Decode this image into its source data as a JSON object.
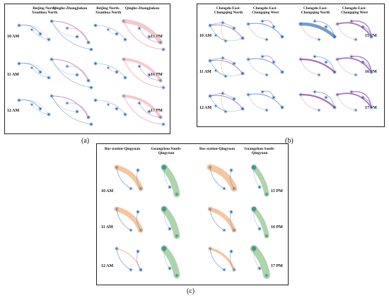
{
  "panels": [
    {
      "id": "a",
      "label": "(a)",
      "columns": [
        "Beijing North-Xuanhua North",
        "Qinghe-Zhangjiakou",
        "Beijing North-Xuanhua North",
        "Qinghe-Zhangjiakou"
      ],
      "left_rows": [
        "10 AM",
        "11 AM",
        "12 AM"
      ],
      "right_rows": [
        "15 PM",
        "16 PM",
        "17 PM"
      ]
    },
    {
      "id": "b",
      "label": "(b)",
      "columns": [
        "Chengdu East-Chongqing North",
        "Chengdu East-Chongqing West",
        "Chengdu East-Chongqing North",
        "Chengdu East-Chongqing West"
      ],
      "left_rows": [
        "10 AM",
        "11 AM",
        "12 AM"
      ],
      "right_rows": [
        "15 PM",
        "16 PM",
        "17 PM"
      ]
    },
    {
      "id": "c",
      "label": "(c)",
      "columns": [
        "Bus station-Qingyuan",
        "Guangzhou South-Qingyuan",
        "Bus station-Qingyuan",
        "Guangzhou South-Qingyuan"
      ],
      "left_rows": [
        "10 AM",
        "11 AM",
        "12 AM"
      ],
      "right_rows": [
        "15 PM",
        "16 PM",
        "17 PM"
      ]
    }
  ],
  "colors": {
    "node": "#2f6fb0",
    "flow_blue": "#4a78c0",
    "flow_purple": "#8e3fa0",
    "flow_pink": "#e8a0a8",
    "flow_orange": "#f0a060",
    "flow_green": "#6ab06a",
    "flow_gray": "#9aa0b0"
  }
}
